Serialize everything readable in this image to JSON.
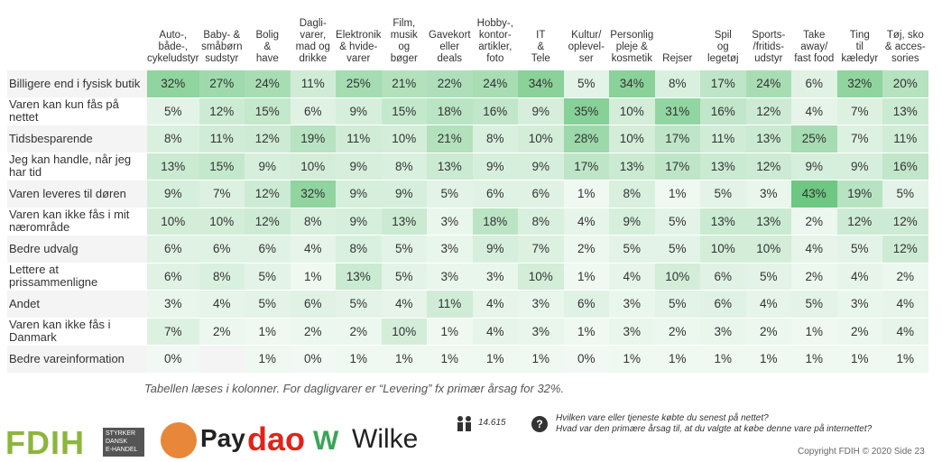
{
  "table": {
    "columns": [
      "Auto-,\nbåde-,\ncykeludstyr",
      "Baby- &\nsmåbørn\nsudstyr",
      "Bolig\n&\nhave",
      "Dagli-\nvarer,\nmad og\ndrikke",
      "Elektronik\n& hvide-\nvarer",
      "Film,\nmusik\nog\nbøger",
      "Gavekort\neller\ndeals",
      "Hobby-,\nkontor-\nartikler,\nfoto",
      "IT\n&\nTele",
      "Kultur/\noplevel-\nser",
      "Personlig\npleje &\nkosmetik",
      "Rejser",
      "Spil\nog\nlegetøj",
      "Sports-\n/fritids-\nudstyr",
      "Take\naway/\nfast food",
      "Ting\ntil\nkæledyr",
      "Tøj, sko\n& acces-\nsories"
    ],
    "rows": [
      {
        "label": "Billigere end i fysisk butik",
        "cells": [
          "32%",
          "27%",
          "24%",
          "11%",
          "25%",
          "21%",
          "22%",
          "24%",
          "34%",
          "5%",
          "34%",
          "8%",
          "17%",
          "24%",
          "6%",
          "32%",
          "20%"
        ]
      },
      {
        "label": "Varen kan kun fås på\nnettet",
        "cells": [
          "5%",
          "12%",
          "15%",
          "6%",
          "9%",
          "15%",
          "18%",
          "16%",
          "9%",
          "35%",
          "10%",
          "31%",
          "16%",
          "12%",
          "4%",
          "7%",
          "13%"
        ]
      },
      {
        "label": "Tidsbesparende",
        "cells": [
          "8%",
          "11%",
          "12%",
          "19%",
          "11%",
          "10%",
          "21%",
          "8%",
          "10%",
          "28%",
          "10%",
          "17%",
          "11%",
          "13%",
          "25%",
          "7%",
          "11%"
        ]
      },
      {
        "label": "Jeg kan handle, når jeg\nhar tid",
        "cells": [
          "13%",
          "15%",
          "9%",
          "10%",
          "9%",
          "8%",
          "13%",
          "9%",
          "9%",
          "17%",
          "13%",
          "17%",
          "13%",
          "12%",
          "9%",
          "9%",
          "16%"
        ]
      },
      {
        "label": "Varen leveres til døren",
        "cells": [
          "9%",
          "7%",
          "12%",
          "32%",
          "9%",
          "9%",
          "5%",
          "6%",
          "6%",
          "1%",
          "8%",
          "1%",
          "5%",
          "3%",
          "43%",
          "19%",
          "5%"
        ]
      },
      {
        "label": "Varen kan ikke fås i mit\nnærområde",
        "cells": [
          "10%",
          "10%",
          "12%",
          "8%",
          "9%",
          "13%",
          "3%",
          "18%",
          "8%",
          "4%",
          "9%",
          "5%",
          "13%",
          "13%",
          "2%",
          "12%",
          "12%"
        ]
      },
      {
        "label": "Bedre udvalg",
        "cells": [
          "6%",
          "6%",
          "6%",
          "4%",
          "8%",
          "5%",
          "3%",
          "9%",
          "7%",
          "2%",
          "5%",
          "5%",
          "10%",
          "10%",
          "4%",
          "5%",
          "12%"
        ]
      },
      {
        "label": "Lettere at\nprissammenligne",
        "cells": [
          "6%",
          "8%",
          "5%",
          "1%",
          "13%",
          "5%",
          "3%",
          "3%",
          "10%",
          "1%",
          "4%",
          "10%",
          "6%",
          "5%",
          "2%",
          "4%",
          "2%"
        ]
      },
      {
        "label": "Andet",
        "cells": [
          "3%",
          "4%",
          "5%",
          "6%",
          "5%",
          "4%",
          "11%",
          "4%",
          "3%",
          "6%",
          "3%",
          "5%",
          "6%",
          "4%",
          "5%",
          "3%",
          "4%"
        ]
      },
      {
        "label": "Varen kan ikke fås i\nDanmark",
        "cells": [
          "7%",
          "2%",
          "1%",
          "2%",
          "2%",
          "10%",
          "1%",
          "4%",
          "3%",
          "1%",
          "3%",
          "2%",
          "3%",
          "2%",
          "1%",
          "2%",
          "4%"
        ]
      },
      {
        "label": "Bedre vareinformation",
        "cells": [
          "0%",
          null,
          "1%",
          "0%",
          "1%",
          "1%",
          "1%",
          "1%",
          "1%",
          "0%",
          "1%",
          "1%",
          "1%",
          "1%",
          "1%",
          "1%",
          "1%"
        ]
      }
    ]
  },
  "note": "Tabellen læses i kolonner. For dagligvarer er “Levering” fx primær årsag for 32%.",
  "logos": {
    "fdih": "FDIH",
    "fdih_tag": "STYRKER\nDANSK\nE-HANDEL",
    "pay": "Pay",
    "dao": "dao",
    "w": "W",
    "wilke": "Wilke"
  },
  "respondents": "14.615",
  "questions": [
    "Hvilken vare eller tjeneste købte du senest på nettet?",
    "Hvad var den primære årsag til, at du valgte at købe denne vare på internettet?"
  ],
  "copyright": "Copyright FDIH © 2020  Side  23"
}
